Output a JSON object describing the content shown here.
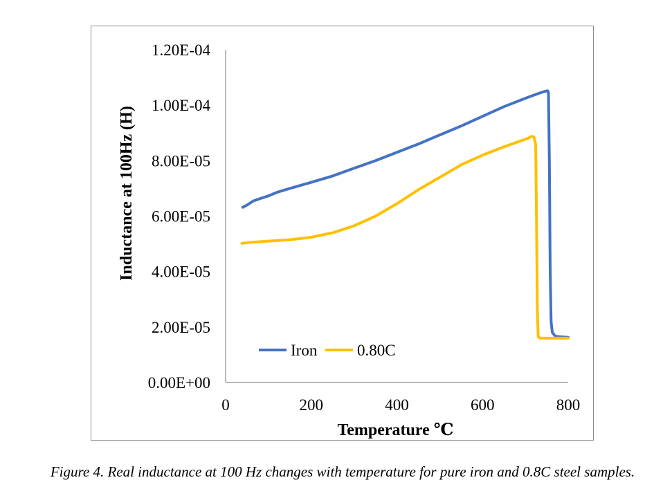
{
  "chart_data": {
    "type": "line",
    "title": "",
    "xlabel": "Temperature ℃",
    "ylabel": "Inductance at 100Hz (H)",
    "xlim": [
      0,
      800
    ],
    "ylim": [
      0,
      0.00012
    ],
    "x_ticks": [
      0,
      200,
      400,
      600,
      800
    ],
    "x_tick_labels": [
      "0",
      "200",
      "400",
      "600",
      "800"
    ],
    "y_ticks": [
      0,
      2e-05,
      4e-05,
      6e-05,
      8e-05,
      0.0001,
      0.00012
    ],
    "y_tick_labels": [
      "0.00E+00",
      "2.00E-05",
      "4.00E-05",
      "6.00E-05",
      "8.00E-05",
      "1.00E-04",
      "1.20E-04"
    ],
    "grid": false,
    "legend": "bottom-left",
    "series": [
      {
        "name": "Iron",
        "color": "#4472c4",
        "points": [
          [
            40,
            6.32e-05
          ],
          [
            50,
            6.4e-05
          ],
          [
            65,
            6.55e-05
          ],
          [
            80,
            6.63e-05
          ],
          [
            100,
            6.73e-05
          ],
          [
            120,
            6.86e-05
          ],
          [
            150,
            7e-05
          ],
          [
            200,
            7.22e-05
          ],
          [
            250,
            7.45e-05
          ],
          [
            300,
            7.73e-05
          ],
          [
            350,
            8e-05
          ],
          [
            400,
            8.3e-05
          ],
          [
            450,
            8.6e-05
          ],
          [
            500,
            8.93e-05
          ],
          [
            550,
            9.25e-05
          ],
          [
            600,
            9.6e-05
          ],
          [
            650,
            9.95e-05
          ],
          [
            700,
            0.0001025
          ],
          [
            730,
            0.0001042
          ],
          [
            745,
            0.000105
          ],
          [
            752,
            0.0001052
          ],
          [
            754,
            0.0001045
          ],
          [
            756,
            8e-05
          ],
          [
            758,
            4e-05
          ],
          [
            760,
            2.2e-05
          ],
          [
            763,
            1.8e-05
          ],
          [
            770,
            1.67e-05
          ],
          [
            780,
            1.65e-05
          ],
          [
            800,
            1.63e-05
          ]
        ]
      },
      {
        "name": "0.80C",
        "color": "#ffc000",
        "points": [
          [
            38,
            5.02e-05
          ],
          [
            60,
            5.06e-05
          ],
          [
            100,
            5.1e-05
          ],
          [
            150,
            5.15e-05
          ],
          [
            200,
            5.24e-05
          ],
          [
            250,
            5.4e-05
          ],
          [
            300,
            5.65e-05
          ],
          [
            350,
            6e-05
          ],
          [
            400,
            6.45e-05
          ],
          [
            450,
            6.95e-05
          ],
          [
            500,
            7.4e-05
          ],
          [
            550,
            7.85e-05
          ],
          [
            600,
            8.2e-05
          ],
          [
            650,
            8.5e-05
          ],
          [
            690,
            8.72e-05
          ],
          [
            705,
            8.8e-05
          ],
          [
            715,
            8.88e-05
          ],
          [
            720,
            8.85e-05
          ],
          [
            724,
            8.6e-05
          ],
          [
            726,
            6e-05
          ],
          [
            728,
            2.5e-05
          ],
          [
            730,
            1.65e-05
          ],
          [
            735,
            1.6e-05
          ],
          [
            760,
            1.6e-05
          ],
          [
            800,
            1.6e-05
          ]
        ]
      }
    ]
  },
  "caption": "Figure 4. Real inductance at 100 Hz changes with temperature for pure iron and 0.8C steel samples."
}
